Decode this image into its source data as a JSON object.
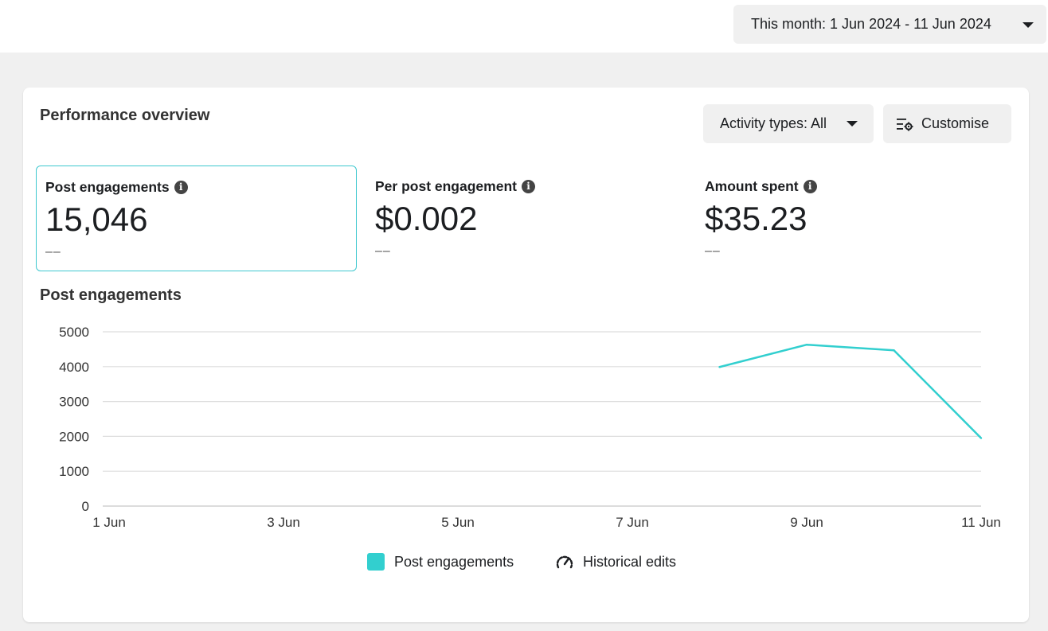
{
  "header": {
    "date_range_label": "This month: 1 Jun 2024 - 11 Jun 2024"
  },
  "overview": {
    "title": "Performance overview",
    "activity_label": "Activity types: All",
    "customise_label": "Customise",
    "metrics": [
      {
        "label": "Post engagements",
        "value": "15,046",
        "sub": "––"
      },
      {
        "label": "Per post engagement",
        "value": "$0.002",
        "sub": "––"
      },
      {
        "label": "Amount spent",
        "value": "$35.23",
        "sub": "––"
      }
    ]
  },
  "chart_title": "Post engagements",
  "legend": {
    "series_label": "Post engagements",
    "edits_label": "Historical edits"
  },
  "colors": {
    "accent": "#32cfcf",
    "selected_border": "#3ec8cf"
  },
  "chart_data": {
    "type": "line",
    "title": "Post engagements",
    "xlabel": "",
    "ylabel": "",
    "x_ticks": [
      "1 Jun",
      "3 Jun",
      "5 Jun",
      "7 Jun",
      "9 Jun",
      "11 Jun"
    ],
    "y_ticks": [
      0,
      1000,
      2000,
      3000,
      4000,
      5000
    ],
    "ylim": [
      0,
      5000
    ],
    "xlim": [
      "1 Jun",
      "11 Jun"
    ],
    "grid": true,
    "legend_position": "bottom-center",
    "series": [
      {
        "name": "Post engagements",
        "x": [
          "8 Jun",
          "9 Jun",
          "10 Jun",
          "11 Jun"
        ],
        "values": [
          3990,
          4630,
          4470,
          1950
        ]
      }
    ]
  }
}
